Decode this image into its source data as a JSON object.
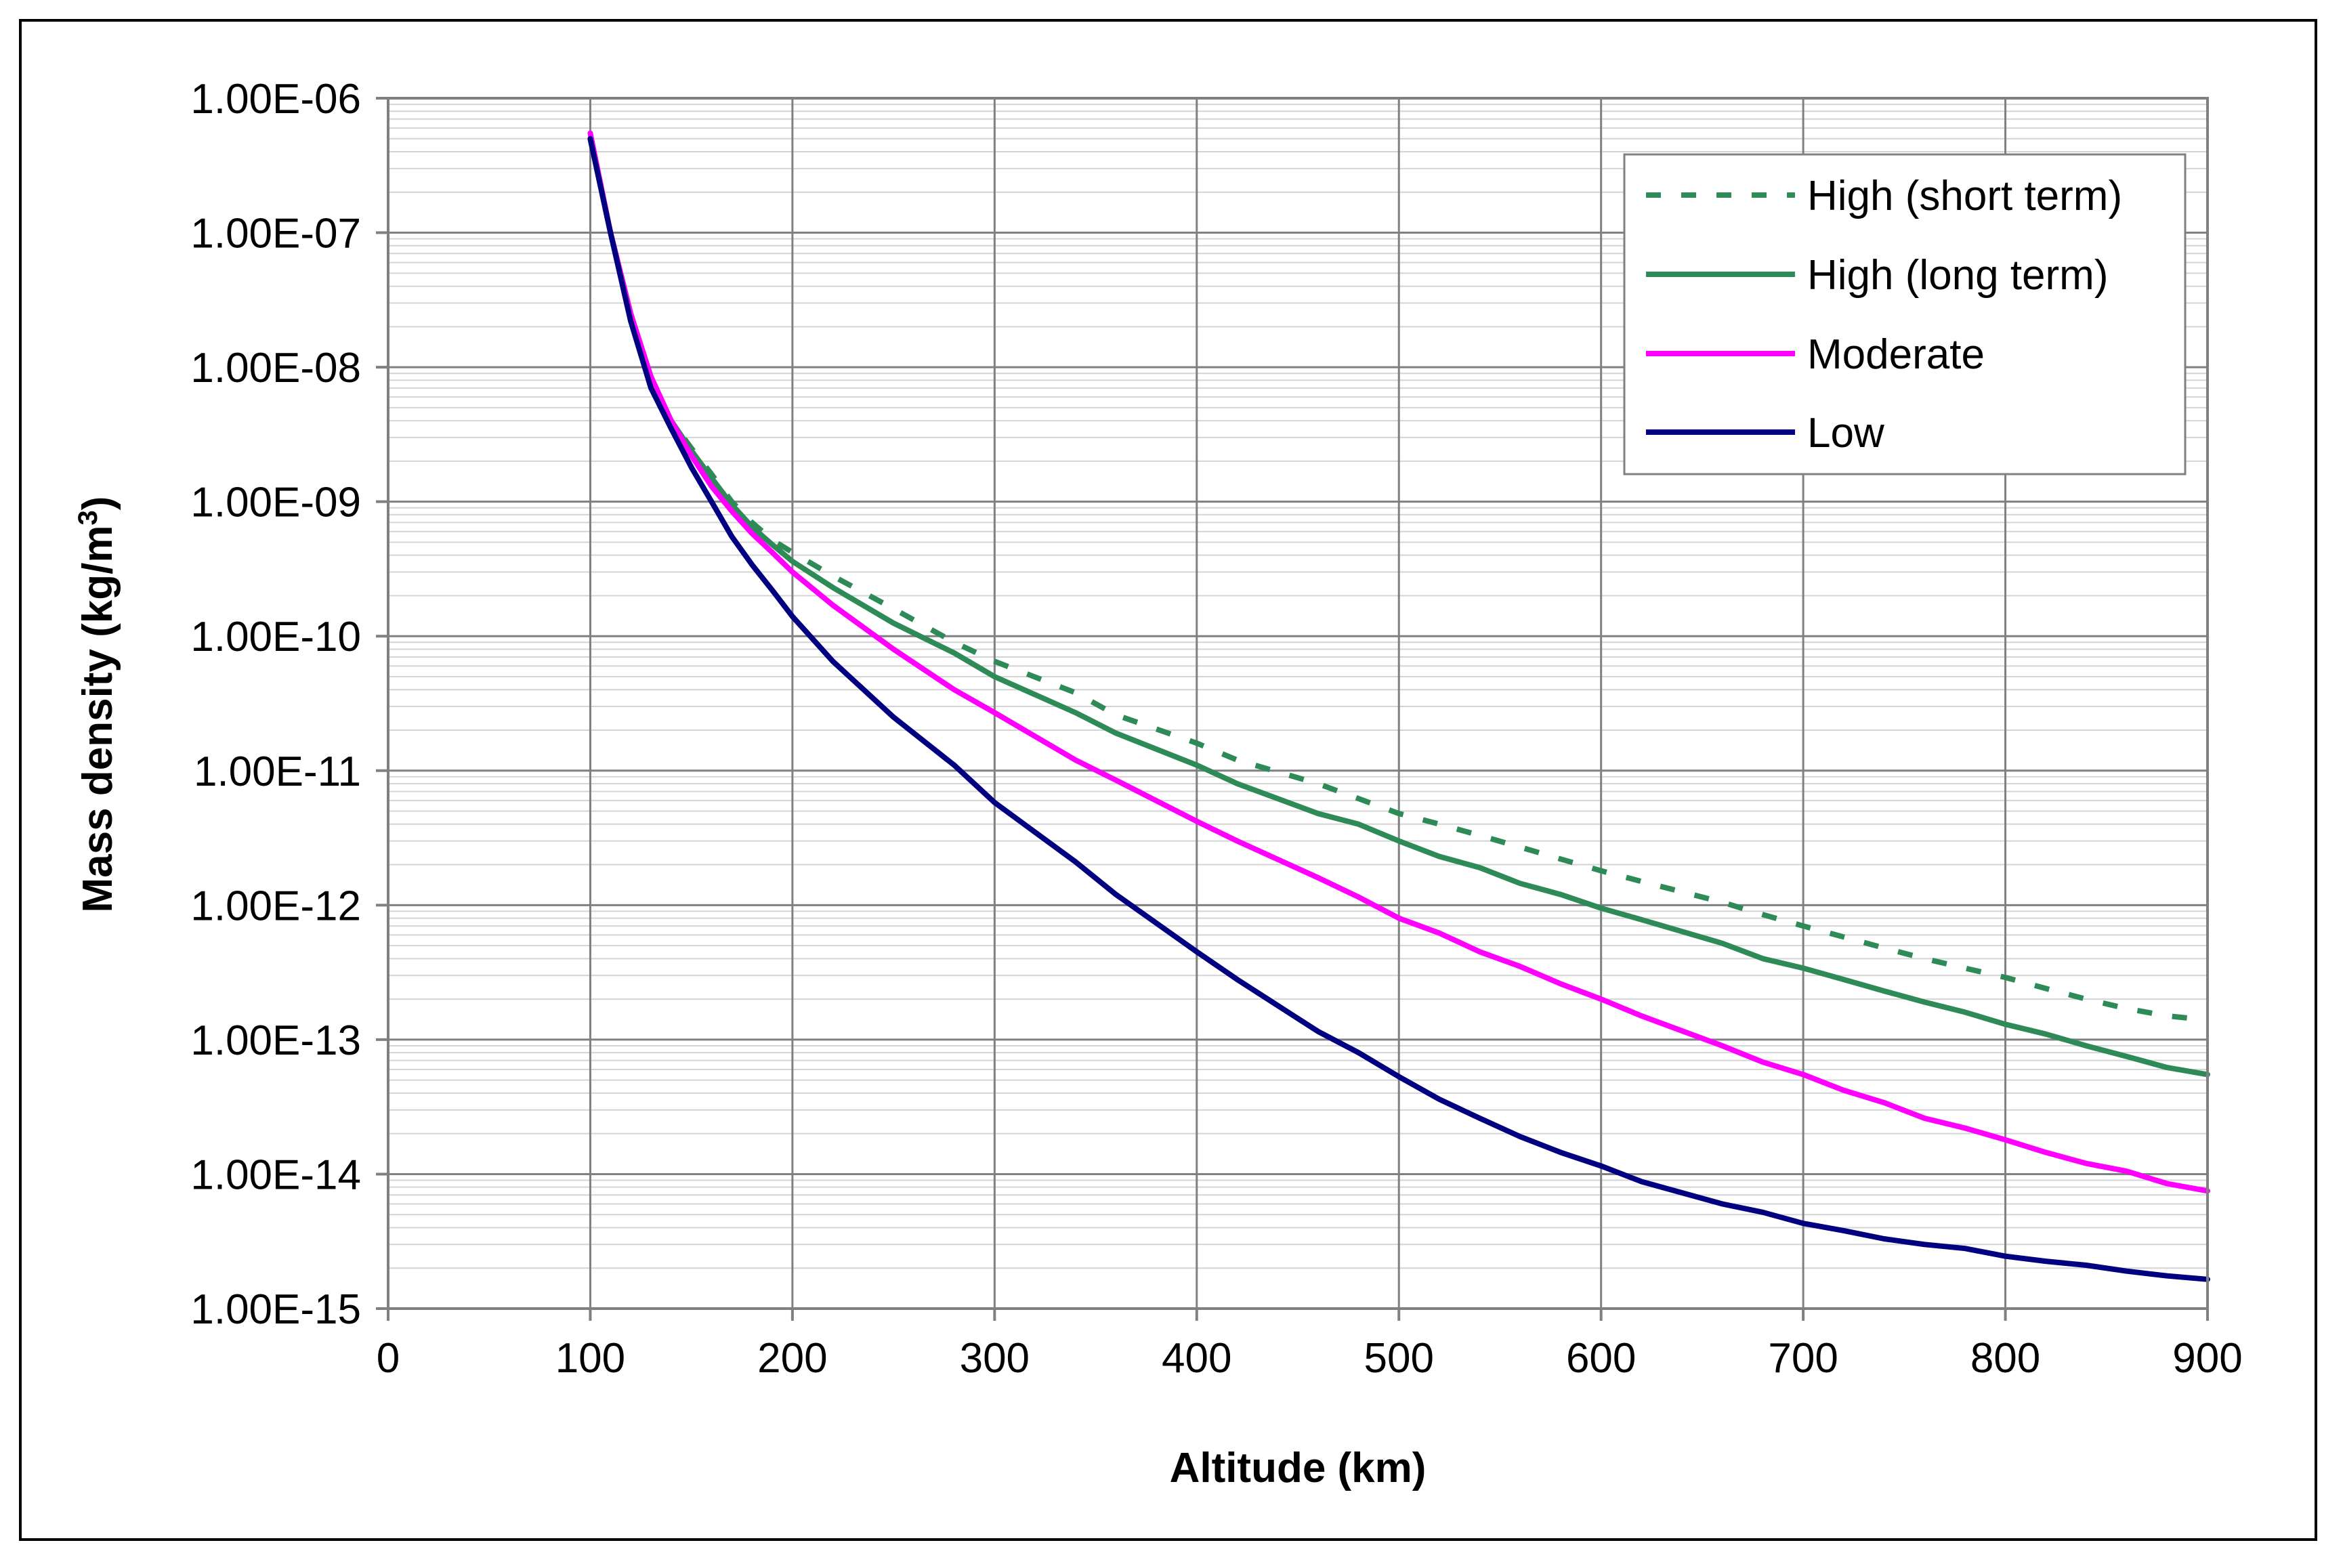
{
  "chart_data": {
    "type": "line",
    "title": "",
    "xlabel": "Altitude (km)",
    "ylabel": "Mass density (kg/m³)",
    "ylabel_base": "Mass density (kg/m",
    "ylabel_sup": "3",
    "ylabel_close": ")",
    "xlim": [
      0,
      900
    ],
    "ylim": [
      1e-15,
      1e-06
    ],
    "yscale": "log",
    "grid": true,
    "legend_position": "top-right",
    "x_ticks": [
      0,
      100,
      200,
      300,
      400,
      500,
      600,
      700,
      800,
      900
    ],
    "x_tick_labels": [
      "0",
      "100",
      "200",
      "300",
      "400",
      "500",
      "600",
      "700",
      "800",
      "900"
    ],
    "y_ticks": [
      1e-06,
      1e-07,
      1e-08,
      1e-09,
      1e-10,
      1e-11,
      1e-12,
      1e-13,
      1e-14,
      1e-15
    ],
    "y_tick_labels": [
      "1.00E-06",
      "1.00E-07",
      "1.00E-08",
      "1.00E-09",
      "1.00E-10",
      "1.00E-11",
      "1.00E-12",
      "1.00E-13",
      "1.00E-14",
      "1.00E-15"
    ],
    "x": [
      100,
      110,
      120,
      130,
      140,
      150,
      160,
      170,
      180,
      190,
      200,
      220,
      250,
      280,
      300,
      340,
      360,
      400,
      420,
      460,
      480,
      500,
      520,
      540,
      560,
      580,
      600,
      620,
      660,
      680,
      700,
      720,
      740,
      760,
      780,
      800,
      820,
      840,
      860,
      880,
      900
    ],
    "series": [
      {
        "name": "High (short term)",
        "color": "#2e8b57",
        "dash": true,
        "values": [
          5e-07,
          1e-07,
          2.5e-08,
          8e-09,
          4e-09,
          2.5e-09,
          1.6e-09,
          1e-09,
          7e-10,
          5.2e-10,
          4.2e-10,
          2.8e-10,
          1.6e-10,
          9e-11,
          6.5e-11,
          3.8e-11,
          2.6e-11,
          1.6e-11,
          1.2e-11,
          8e-12,
          6.2e-12,
          4.8e-12,
          4e-12,
          3.3e-12,
          2.7e-12,
          2.2e-12,
          1.8e-12,
          1.5e-12,
          1.05e-12,
          8.5e-13,
          7e-13,
          5.8e-13,
          4.8e-13,
          4e-13,
          3.4e-13,
          2.9e-13,
          2.4e-13,
          2e-13,
          1.7e-13,
          1.5e-13,
          1.4e-13
        ]
      },
      {
        "name": "High (long term)",
        "color": "#2e8b57",
        "dash": false,
        "values": [
          5e-07,
          1e-07,
          2.5e-08,
          8e-09,
          4e-09,
          2.4e-09,
          1.5e-09,
          9.5e-10,
          6.5e-10,
          4.8e-10,
          3.6e-10,
          2.3e-10,
          1.25e-10,
          7.5e-11,
          5e-11,
          2.7e-11,
          1.9e-11,
          1.1e-11,
          8e-12,
          4.8e-12,
          4e-12,
          3e-12,
          2.3e-12,
          1.9e-12,
          1.45e-12,
          1.2e-12,
          9.5e-13,
          7.8e-13,
          5.2e-13,
          4e-13,
          3.4e-13,
          2.8e-13,
          2.3e-13,
          1.9e-13,
          1.6e-13,
          1.3e-13,
          1.1e-13,
          9e-14,
          7.5e-14,
          6.2e-14,
          5.5e-14
        ]
      },
      {
        "name": "Moderate",
        "color": "#ff00ff",
        "dash": false,
        "values": [
          5.5e-07,
          1e-07,
          2.5e-08,
          8.5e-09,
          4e-09,
          2.2e-09,
          1.3e-09,
          8.5e-10,
          5.8e-10,
          4.2e-10,
          3e-10,
          1.7e-10,
          8e-11,
          4e-11,
          2.7e-11,
          1.2e-11,
          8.5e-12,
          4.2e-12,
          3e-12,
          1.6e-12,
          1.15e-12,
          8e-13,
          6.2e-13,
          4.5e-13,
          3.5e-13,
          2.6e-13,
          2e-13,
          1.5e-13,
          9e-14,
          6.8e-14,
          5.5e-14,
          4.2e-14,
          3.4e-14,
          2.6e-14,
          2.2e-14,
          1.8e-14,
          1.45e-14,
          1.2e-14,
          1.05e-14,
          8.5e-15,
          7.5e-15
        ]
      },
      {
        "name": "Low",
        "color": "#000080",
        "dash": false,
        "values": [
          5e-07,
          1e-07,
          2.2e-08,
          7e-09,
          3.5e-09,
          1.8e-09,
          1e-09,
          5.5e-10,
          3.4e-10,
          2.2e-10,
          1.4e-10,
          6.5e-11,
          2.5e-11,
          1.1e-11,
          5.8e-12,
          2.1e-12,
          1.2e-12,
          4.5e-13,
          2.8e-13,
          1.15e-13,
          8e-14,
          5.3e-14,
          3.6e-14,
          2.6e-14,
          1.9e-14,
          1.45e-14,
          1.15e-14,
          8.8e-15,
          6e-15,
          5.2e-15,
          4.3e-15,
          3.8e-15,
          3.3e-15,
          3e-15,
          2.8e-15,
          2.45e-15,
          2.25e-15,
          2.1e-15,
          1.9e-15,
          1.75e-15,
          1.65e-15
        ]
      }
    ]
  }
}
